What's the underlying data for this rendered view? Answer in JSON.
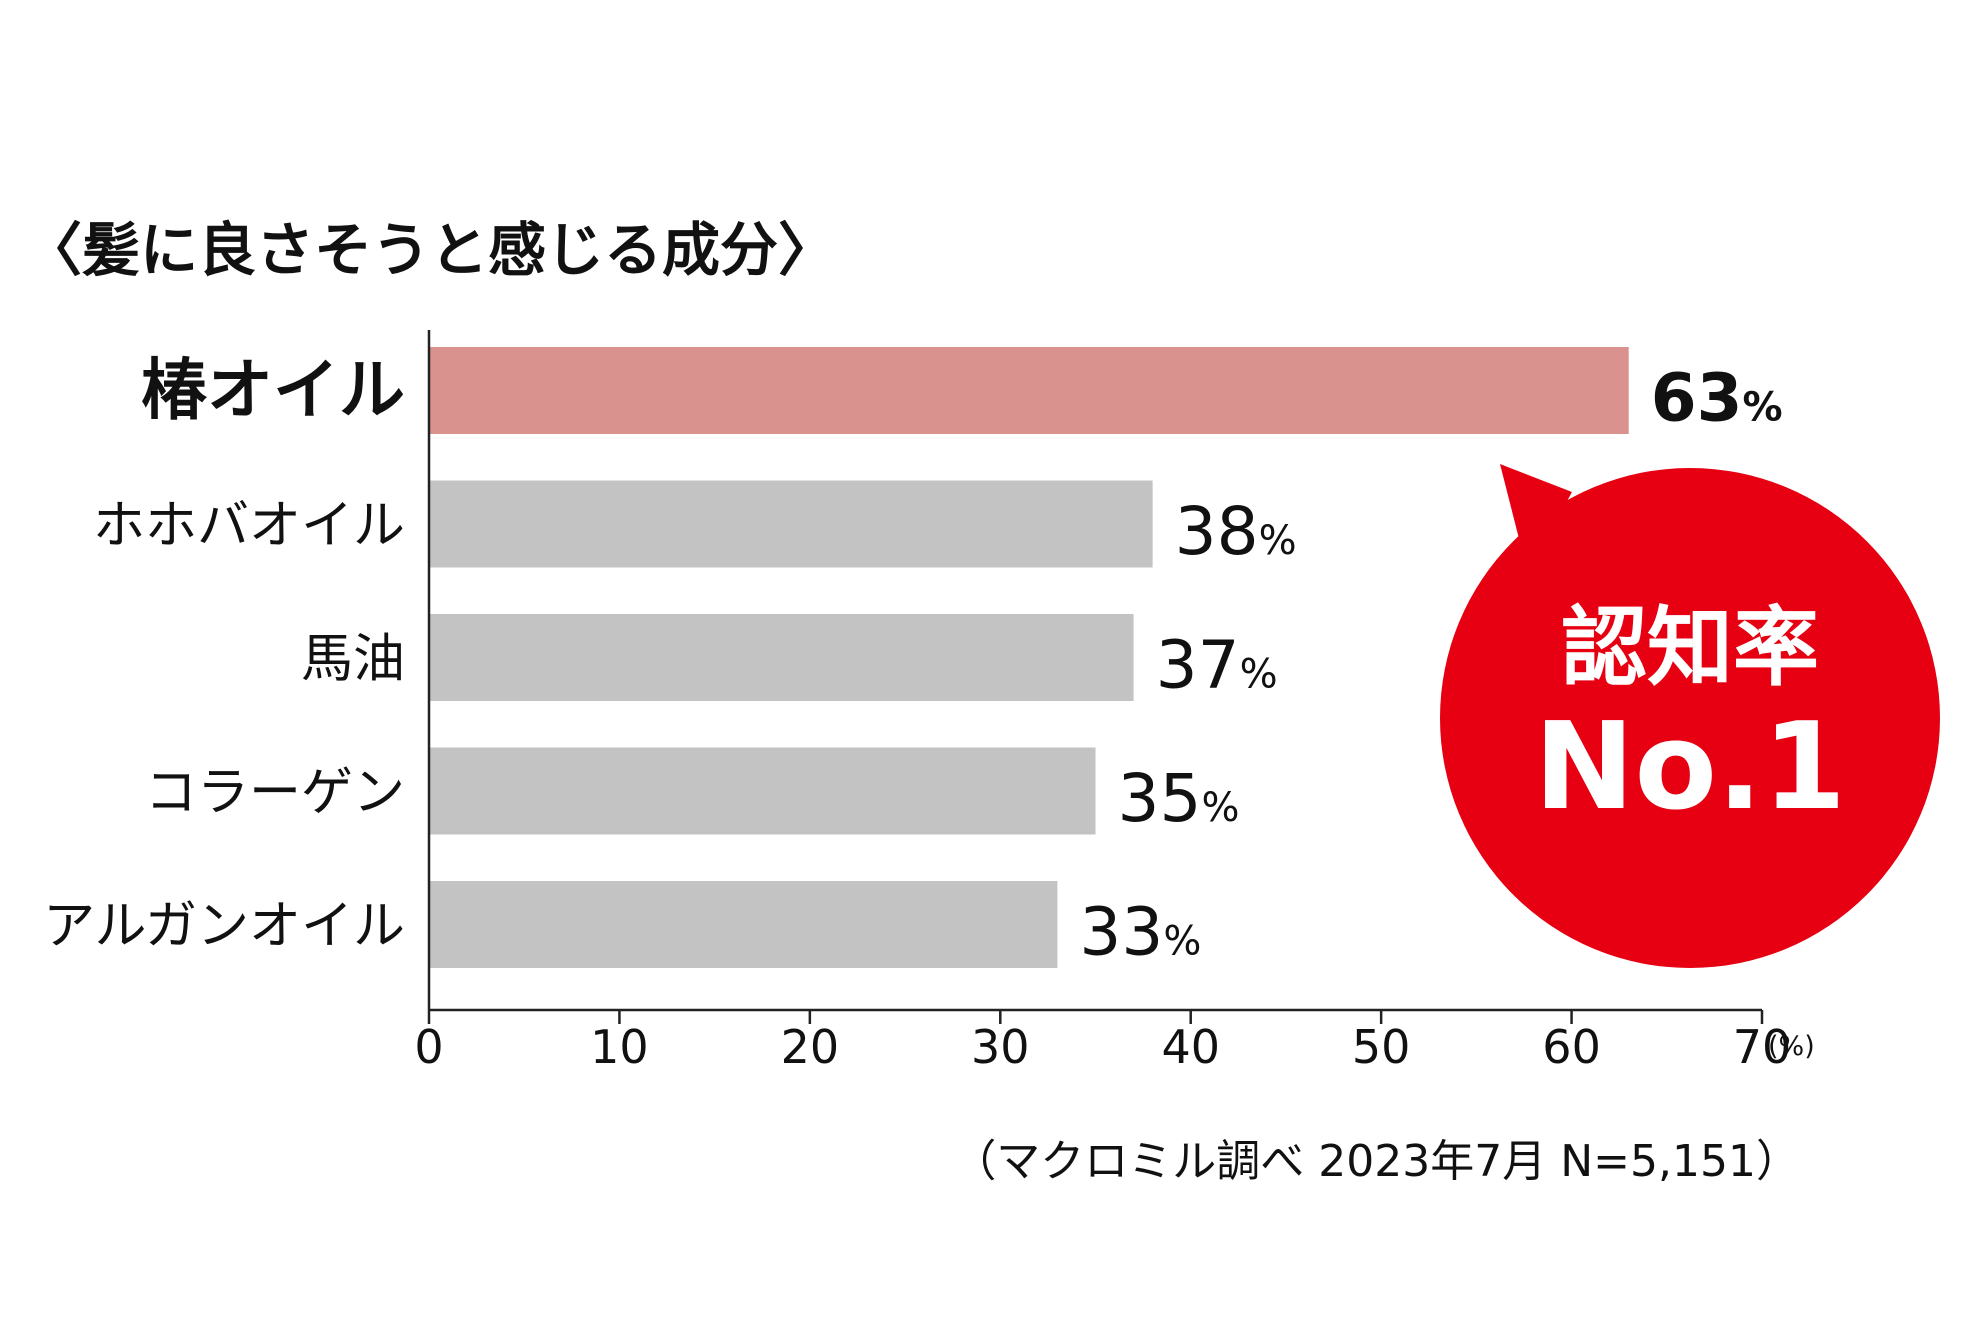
{
  "chart_data": {
    "type": "bar",
    "orientation": "horizontal",
    "title": "〈髪に良さそうと感じる成分〉",
    "categories": [
      "椿オイル",
      "ホホバオイル",
      "馬油",
      "コラーゲン",
      "アルガンオイル"
    ],
    "values": [
      63,
      38,
      37,
      35,
      33
    ],
    "value_suffix": "%",
    "highlight_index": 0,
    "xlim": [
      0,
      70
    ],
    "x_ticks": [
      0,
      10,
      20,
      30,
      40,
      50,
      60,
      70
    ],
    "x_unit": "(%)",
    "grid": false,
    "colors": {
      "highlight_bar": "#d9928e",
      "bar": "#c2c3c2",
      "badge": "#e60012",
      "badge_text": "#ffffff",
      "axis": "#222222",
      "text": "#111111"
    },
    "badge": {
      "line1": "認知率",
      "line2": "No.1"
    },
    "note": "（マクロミル調べ 2023年7月 N=5,151）"
  }
}
